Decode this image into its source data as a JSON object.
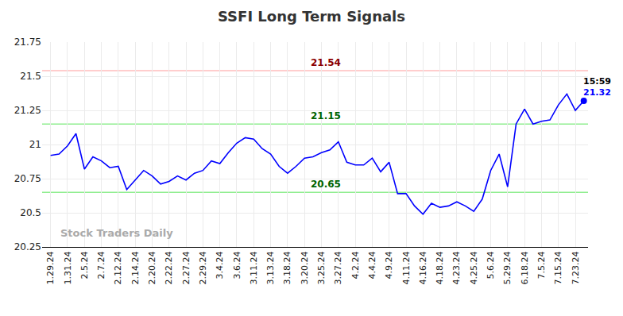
{
  "chart_data": {
    "type": "line",
    "title": "SSFI Long Term Signals",
    "color": "#0000ff",
    "categories": [
      "1.29.24",
      null,
      "1.31.24",
      null,
      "2.5.24",
      null,
      "2.7.24",
      null,
      "2.12.24",
      null,
      "2.14.24",
      null,
      "2.20.24",
      null,
      "2.22.24",
      null,
      "2.27.24",
      null,
      "2.29.24",
      null,
      "3.4.24",
      null,
      "3.6.24",
      null,
      "3.11.24",
      null,
      "3.13.24",
      null,
      "3.18.24",
      null,
      "3.20.24",
      null,
      "3.25.24",
      null,
      "3.27.24",
      null,
      "4.2.24",
      null,
      "4.4.24",
      null,
      "4.9.24",
      null,
      "4.11.24",
      null,
      "4.16.24",
      null,
      "4.18.24",
      null,
      "4.23.24",
      null,
      "4.25.24",
      null,
      "5.6.24",
      null,
      "5.29.24",
      null,
      "6.18.24",
      null,
      "7.5.24",
      null,
      "7.15.24",
      null,
      "7.23.24",
      null
    ],
    "values": [
      20.92,
      20.93,
      20.99,
      21.08,
      20.82,
      20.91,
      20.88,
      20.83,
      20.84,
      20.67,
      20.74,
      20.81,
      20.77,
      20.71,
      20.73,
      20.77,
      20.74,
      20.79,
      20.81,
      20.88,
      20.86,
      20.94,
      21.01,
      21.05,
      21.04,
      20.97,
      20.93,
      20.84,
      20.79,
      20.84,
      20.9,
      20.91,
      20.94,
      20.96,
      21.02,
      20.87,
      20.85,
      20.85,
      20.9,
      20.8,
      20.87,
      20.64,
      20.64,
      20.55,
      20.49,
      20.57,
      20.54,
      20.55,
      20.58,
      20.55,
      20.51,
      20.6,
      20.81,
      20.93,
      20.69,
      21.15,
      21.26,
      21.15,
      21.17,
      21.18,
      21.29,
      21.37,
      21.25,
      21.32
    ],
    "ylim": [
      20.25,
      21.75
    ],
    "yticks": [
      20.25,
      20.5,
      20.75,
      21,
      21.25,
      21.5,
      21.75
    ],
    "grid": true,
    "reference_lines": [
      {
        "value": 21.54,
        "label": "21.54",
        "color": "#ffbcbc",
        "label_color": "#8b0000"
      },
      {
        "value": 21.15,
        "label": "21.15",
        "color": "#90ee90",
        "label_color": "#006400"
      },
      {
        "value": 20.65,
        "label": "20.65",
        "color": "#90ee90",
        "label_color": "#006400"
      }
    ],
    "last_point": {
      "time": "15:59",
      "label": "21.32"
    },
    "watermark": "Stock Traders Daily"
  }
}
